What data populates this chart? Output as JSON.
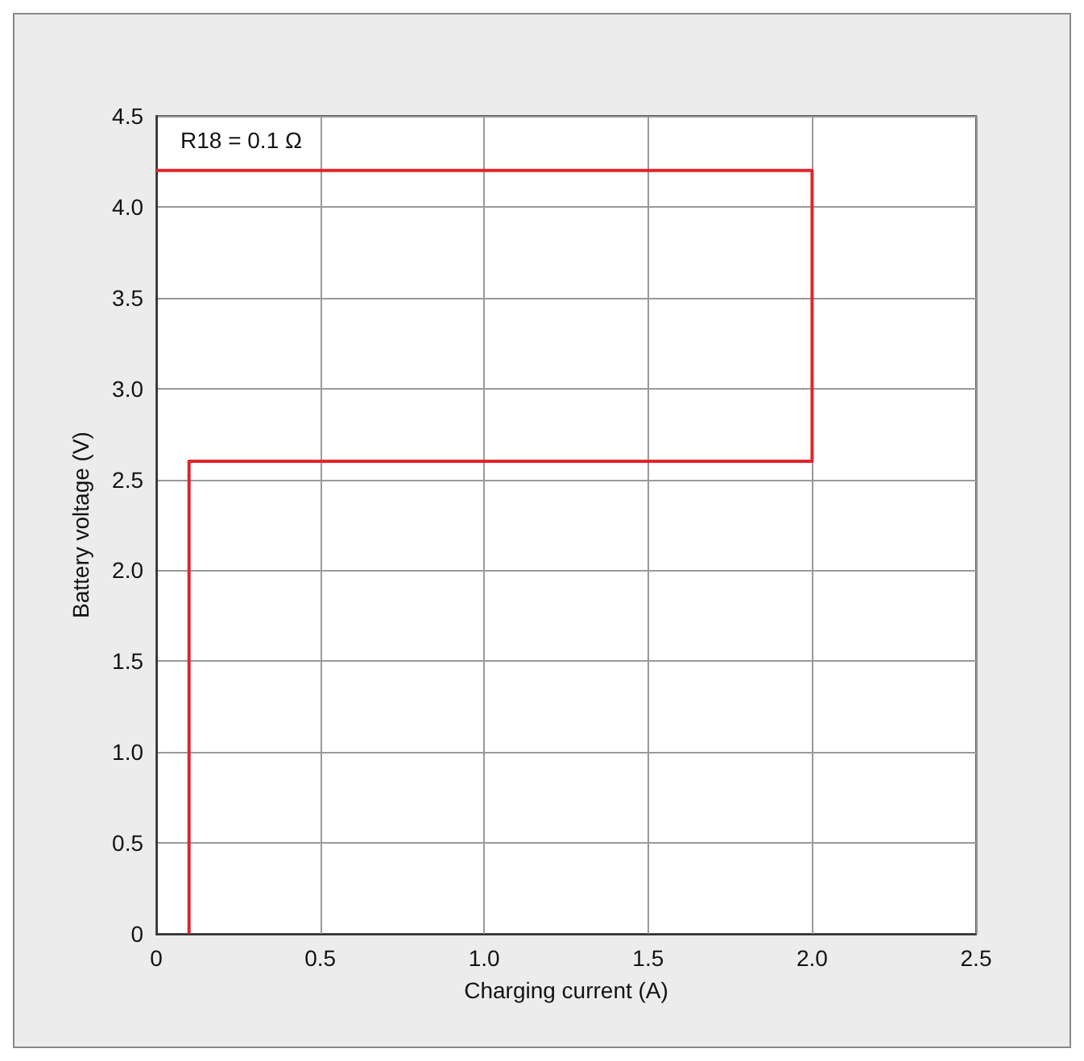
{
  "chart_data": {
    "type": "line",
    "xlabel": "Charging current (A)",
    "ylabel": "Battery voltage (V)",
    "annotations": [
      "R18 = 0.1 Ω"
    ],
    "series": [
      {
        "color": "#e0252b",
        "x": [
          0.1,
          0.1,
          2.0,
          2.0,
          0
        ],
        "values": [
          0,
          2.6,
          2.6,
          4.2,
          4.2
        ]
      }
    ],
    "xlim": [
      0,
      2.5
    ],
    "xticks": [
      0,
      0.5,
      {
        "value": 1,
        "label": "1.0"
      },
      1.5,
      {
        "value": 2,
        "label": "2.0"
      },
      2.5
    ],
    "ylim": [
      0,
      4.5
    ],
    "yticks": [
      0,
      0.5,
      {
        "value": 1,
        "label": "1.0"
      },
      1.5,
      {
        "value": 2,
        "label": "2.0"
      },
      2.5,
      {
        "value": 3,
        "label": "3.0"
      },
      3.5,
      {
        "value": 4,
        "label": "4.0"
      },
      4.5
    ],
    "grid": true,
    "marker": "none",
    "line_style": "solid"
  }
}
